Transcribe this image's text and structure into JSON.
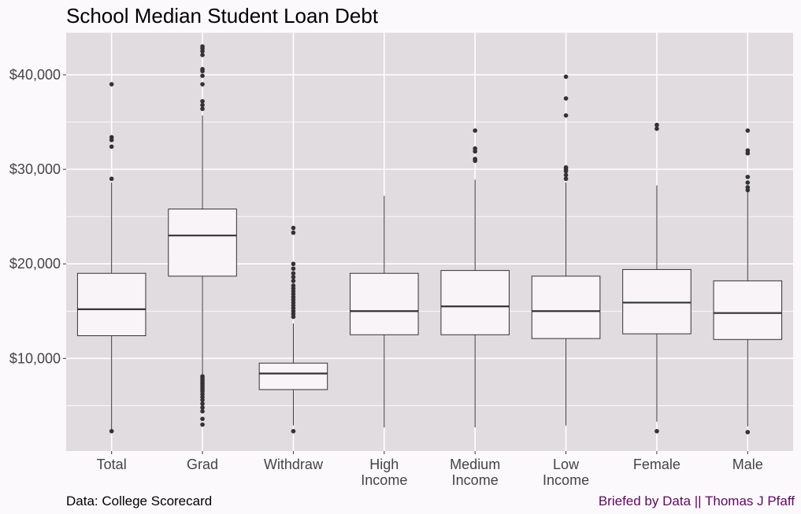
{
  "chart_data": {
    "type": "boxplot",
    "title": "School Median Student Loan Debt",
    "xlabel": "",
    "ylabel": "",
    "ylim": [
      200,
      44500
    ],
    "y_ticks": [
      10000,
      20000,
      30000,
      40000
    ],
    "y_tick_labels": [
      "$10,000",
      "$20,000",
      "$30,000",
      "$40,000"
    ],
    "grid": true,
    "legend": "none",
    "colors": {
      "panel": "#e0dcdf",
      "box_fill": "#f8f4f7",
      "stroke": "#333333",
      "grid": "#ffffff",
      "outlier": "#333333"
    },
    "categories": [
      {
        "label_lines": [
          "Total"
        ],
        "whisker_low": 2300,
        "q1": 12400,
        "median": 15200,
        "q3": 19000,
        "whisker_high": 28600,
        "outliers": [
          39000,
          33400,
          33100,
          32400,
          29000,
          2300
        ]
      },
      {
        "label_lines": [
          "Grad"
        ],
        "whisker_low": 8300,
        "q1": 18700,
        "median": 23000,
        "q3": 25800,
        "whisker_high": 35700,
        "outliers": [
          43000,
          42800,
          42500,
          42100,
          40600,
          40400,
          39900,
          39000,
          37200,
          36800,
          36400,
          8100,
          7900,
          7700,
          7500,
          7300,
          7100,
          6900,
          6700,
          6500,
          6200,
          5900,
          5600,
          5200,
          4800,
          4400,
          3600,
          3000
        ]
      },
      {
        "label_lines": [
          "Withdraw"
        ],
        "whisker_low": 2900,
        "q1": 6700,
        "median": 8400,
        "q3": 9500,
        "whisker_high": 13700,
        "outliers": [
          23800,
          23300,
          20000,
          19500,
          19000,
          18600,
          18200,
          17700,
          17400,
          17100,
          16800,
          16500,
          16200,
          15900,
          15600,
          15300,
          15000,
          14700,
          14400,
          2300
        ]
      },
      {
        "label_lines": [
          "High",
          "Income"
        ],
        "whisker_low": 2700,
        "q1": 12500,
        "median": 15000,
        "q3": 19000,
        "whisker_high": 27200,
        "outliers": []
      },
      {
        "label_lines": [
          "Medium",
          "Income"
        ],
        "whisker_low": 2700,
        "q1": 12500,
        "median": 15500,
        "q3": 19300,
        "whisker_high": 28900,
        "outliers": [
          34100,
          32200,
          31900,
          31100,
          30900
        ]
      },
      {
        "label_lines": [
          "Low",
          "Income"
        ],
        "whisker_low": 2900,
        "q1": 12100,
        "median": 15000,
        "q3": 18700,
        "whisker_high": 28600,
        "outliers": [
          39800,
          37500,
          35700,
          30200,
          30000,
          29800,
          29400,
          29000
        ]
      },
      {
        "label_lines": [
          "Female"
        ],
        "whisker_low": 3300,
        "q1": 12600,
        "median": 15900,
        "q3": 19400,
        "whisker_high": 28300,
        "outliers": [
          34700,
          34300,
          2300
        ]
      },
      {
        "label_lines": [
          "Male"
        ],
        "whisker_low": 2800,
        "q1": 12000,
        "median": 14800,
        "q3": 18200,
        "whisker_high": 27600,
        "outliers": [
          34100,
          32000,
          31700,
          29200,
          28600,
          28100,
          27800,
          2200
        ]
      }
    ]
  },
  "caption": {
    "source": "Data: College Scorecard",
    "credit": "Briefed by Data || Thomas J Pfaff",
    "credit_color": "#5c0a5e"
  }
}
